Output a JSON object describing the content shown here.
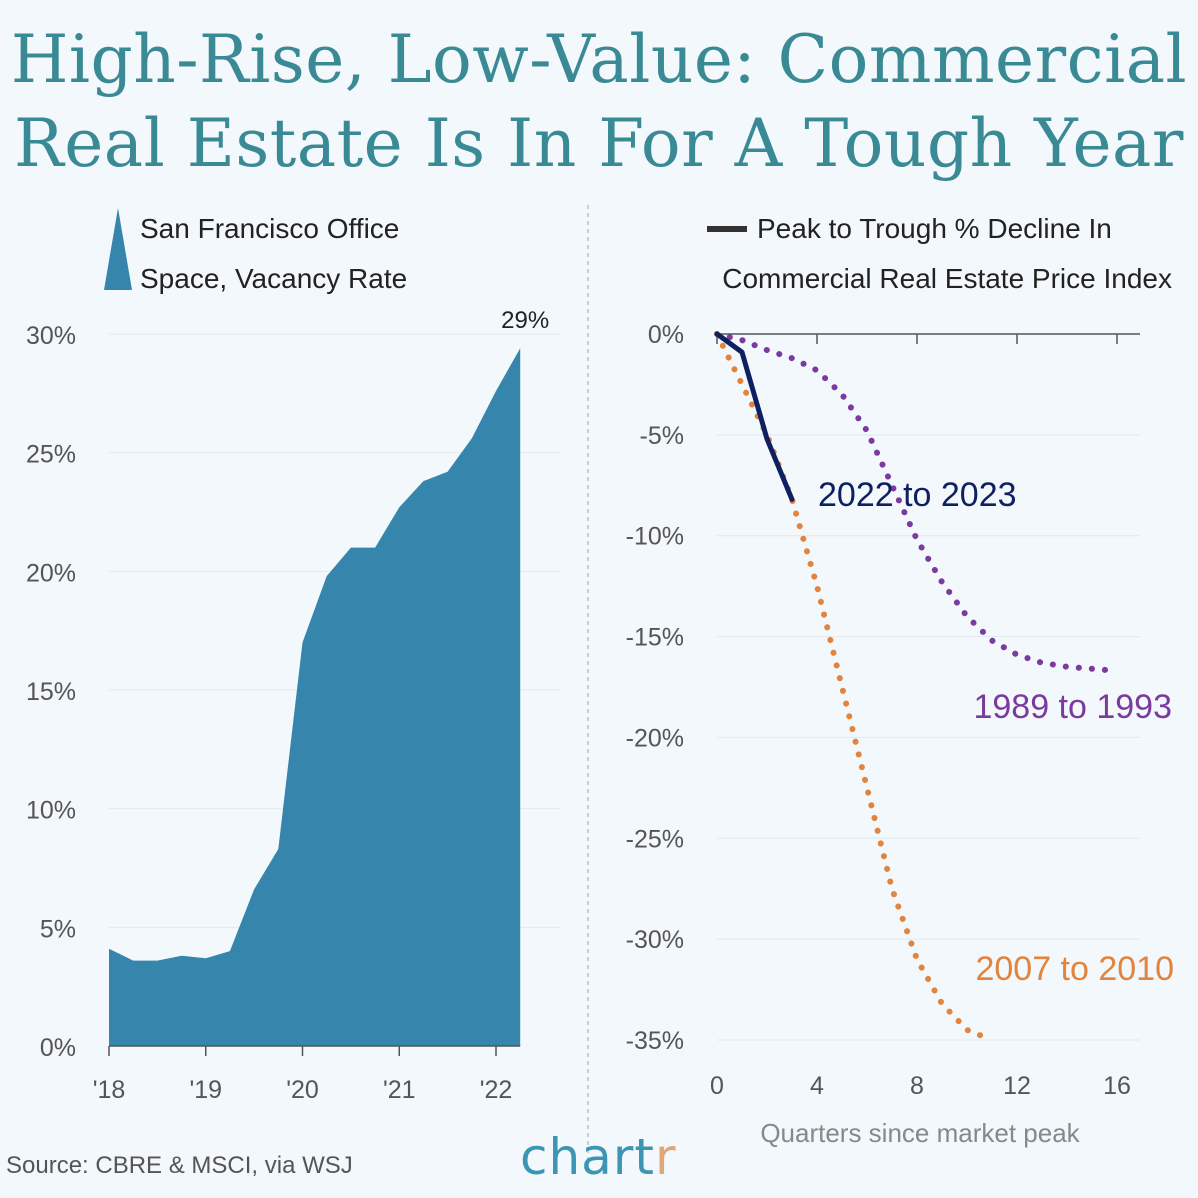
{
  "title": {
    "line1": "High-Rise, Low-Value: Commercial",
    "line2": "Real Estate Is In For A Tough Year"
  },
  "colors": {
    "title": "#3a8a95",
    "area": "#3585ad",
    "series_2022": "#0f2060",
    "series_1989": "#7b3a9e",
    "series_2007": "#e2843d",
    "background": "#f2f8fb"
  },
  "chart_data": [
    {
      "type": "area",
      "legend": [
        "San Francisco Office",
        "Space, Vacancy Rate"
      ],
      "x": [
        2018.0,
        2018.25,
        2018.5,
        2018.75,
        2019.0,
        2019.25,
        2019.5,
        2019.75,
        2020.0,
        2020.25,
        2020.5,
        2020.75,
        2021.0,
        2021.25,
        2021.5,
        2021.75,
        2022.0,
        2022.25
      ],
      "values": [
        4.1,
        3.6,
        3.6,
        3.8,
        3.7,
        4.0,
        6.6,
        8.3,
        17.0,
        19.8,
        21.0,
        21.0,
        22.7,
        23.8,
        24.2,
        25.6,
        27.6,
        29.4
      ],
      "xticks": [
        "'18",
        "'19",
        "'20",
        "'21",
        "'22"
      ],
      "yticks": [
        "0%",
        "5%",
        "10%",
        "15%",
        "20%",
        "25%",
        "30%"
      ],
      "ylim": [
        0,
        30
      ],
      "annotation": "29%"
    },
    {
      "type": "line",
      "legend": [
        "Peak to Trough % Decline In",
        "Commercial Real Estate Price Index"
      ],
      "xlabel": "Quarters since market peak",
      "xticks": [
        "0",
        "4",
        "8",
        "12",
        "16"
      ],
      "yticks": [
        "0%",
        "-5%",
        "-10%",
        "-15%",
        "-20%",
        "-25%",
        "-30%",
        "-35%"
      ],
      "xlim": [
        0,
        16
      ],
      "ylim": [
        -35,
        0
      ],
      "series": [
        {
          "name": "2022 to 2023",
          "style": "solid",
          "x": [
            0,
            1,
            2,
            3
          ],
          "values": [
            0,
            -0.9,
            -5.2,
            -8.2
          ]
        },
        {
          "name": "1989 to 1993",
          "style": "dotted",
          "x": [
            0,
            1,
            2,
            3,
            4,
            5,
            6,
            7,
            8,
            9,
            10,
            11,
            12,
            13,
            14,
            15,
            16
          ],
          "values": [
            0,
            -0.3,
            -0.8,
            -1.2,
            -1.8,
            -3.0,
            -4.8,
            -7.5,
            -10.2,
            -12.3,
            -14.0,
            -15.2,
            -15.9,
            -16.3,
            -16.5,
            -16.6,
            -16.7
          ]
        },
        {
          "name": "2007 to 2010",
          "style": "dotted",
          "x": [
            0,
            1,
            2,
            3,
            4,
            5,
            6,
            7,
            8,
            9,
            10,
            11
          ],
          "values": [
            0,
            -2.5,
            -5.0,
            -8.2,
            -12.5,
            -17.5,
            -22.5,
            -27.5,
            -31.0,
            -33.2,
            -34.5,
            -35.0
          ]
        }
      ]
    }
  ],
  "footer": {
    "source": "Source: CBRE & MSCI, via WSJ",
    "brand_main": "chart",
    "brand_last": "r"
  }
}
